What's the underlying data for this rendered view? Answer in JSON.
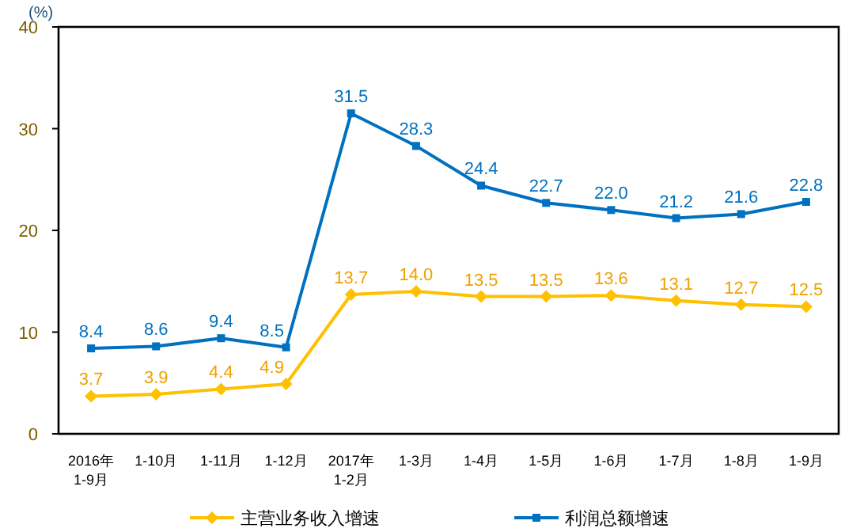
{
  "chart_data": {
    "type": "line",
    "ylabel": "(%)",
    "categories": [
      "2016年\n1-9月",
      "1-10月",
      "1-11月",
      "1-12月",
      "2017年\n1-2月",
      "1-3月",
      "1-4月",
      "1-5月",
      "1-6月",
      "1-7月",
      "1-8月",
      "1-9月"
    ],
    "series": [
      {
        "name": "主营业务收入增速",
        "color": "#ffc000",
        "marker": "diamond",
        "values": [
          3.7,
          3.9,
          4.4,
          4.9,
          13.7,
          14.0,
          13.5,
          13.5,
          13.6,
          13.1,
          12.7,
          12.5
        ],
        "value_labels": [
          "3.7",
          "3.9",
          "4.4",
          "4.9",
          "13.7",
          "14.0",
          "13.5",
          "13.5",
          "13.6",
          "13.1",
          "12.7",
          "12.5"
        ]
      },
      {
        "name": "利润总额增速",
        "color": "#0070c0",
        "marker": "square",
        "values": [
          8.4,
          8.6,
          9.4,
          8.5,
          31.5,
          28.3,
          24.4,
          22.7,
          22.0,
          21.2,
          21.6,
          22.8
        ],
        "value_labels": [
          "8.4",
          "8.6",
          "9.4",
          "8.5",
          "31.5",
          "28.3",
          "24.4",
          "22.7",
          "22.0",
          "21.2",
          "21.6",
          "22.8"
        ]
      }
    ],
    "ylim": [
      0,
      40
    ],
    "yticks": [
      0,
      10,
      20,
      30,
      40
    ],
    "legend": "bottom",
    "grid": false
  }
}
